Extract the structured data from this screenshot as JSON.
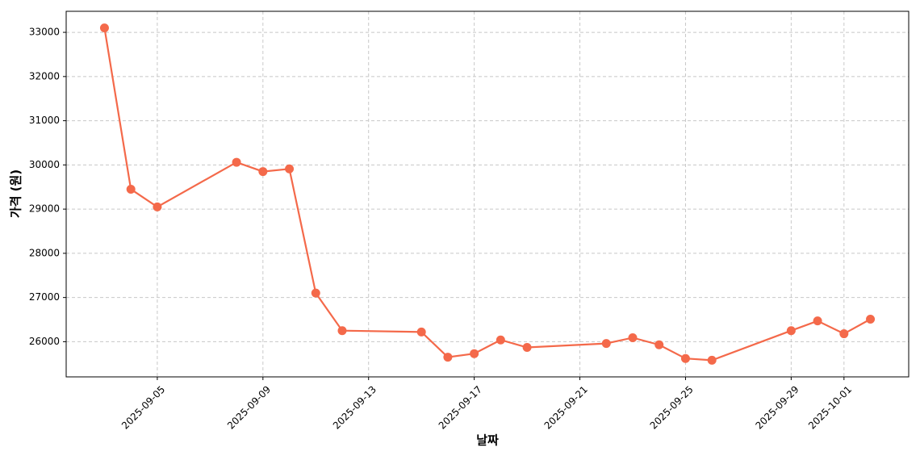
{
  "chart_data": {
    "type": "line",
    "x": [
      "2025-09-03",
      "2025-09-04",
      "2025-09-05",
      "2025-09-08",
      "2025-09-09",
      "2025-09-10",
      "2025-09-11",
      "2025-09-12",
      "2025-09-15",
      "2025-09-16",
      "2025-09-17",
      "2025-09-18",
      "2025-09-19",
      "2025-09-22",
      "2025-09-23",
      "2025-09-24",
      "2025-09-25",
      "2025-09-26",
      "2025-09-29",
      "2025-09-30",
      "2025-10-01",
      "2025-10-02"
    ],
    "values": [
      33100,
      29450,
      29050,
      30060,
      29850,
      29910,
      27100,
      26250,
      26220,
      25650,
      25730,
      26040,
      25870,
      25960,
      26090,
      25930,
      25620,
      25580,
      26250,
      26470,
      26180,
      26510
    ],
    "color": "#f4694a",
    "xlabel": "날짜",
    "ylabel": "가격 (원)",
    "xlim": [
      "2025-09-01T13:12",
      "2025-10-03T10:48"
    ],
    "xticks": [
      "2025-09-05",
      "2025-09-09",
      "2025-09-13",
      "2025-09-17",
      "2025-09-21",
      "2025-09-25",
      "2025-09-29",
      "2025-10-01"
    ],
    "ylim": [
      25204,
      33476
    ],
    "yticks": [
      26000,
      27000,
      28000,
      29000,
      30000,
      31000,
      32000,
      33000
    ],
    "grid": true
  }
}
